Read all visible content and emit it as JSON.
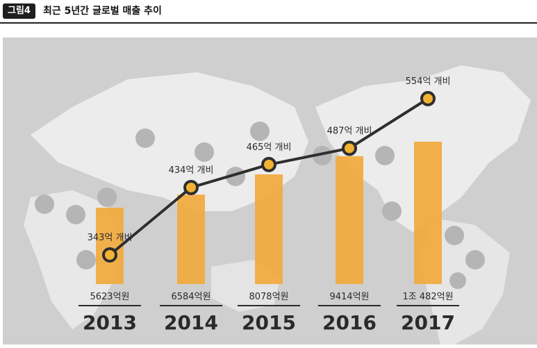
{
  "header": {
    "badge": "그림4",
    "title": "최근 5년간 글로벌 매출 추이"
  },
  "colors": {
    "bar": "#f2a93a",
    "line": "#2e2e2e",
    "marker_fill": "#f2b233",
    "background": "#cfcfcf",
    "land": "#ececec"
  },
  "chart_data": {
    "type": "bar",
    "categories": [
      "2013",
      "2014",
      "2015",
      "2016",
      "2017"
    ],
    "series": [
      {
        "type": "bar",
        "values": [
          5623,
          6584,
          8078,
          9414,
          10482
        ],
        "labels": [
          "5623억원",
          "6584억원",
          "8078억원",
          "9414억원",
          "1조 482억원"
        ]
      },
      {
        "type": "line",
        "values": [
          343,
          434,
          465,
          487,
          554
        ],
        "labels": [
          "343억 개비",
          "434억 개비",
          "465억 개비",
          "487억 개비",
          "554억 개비"
        ]
      }
    ],
    "grid": false,
    "legend": "none"
  }
}
